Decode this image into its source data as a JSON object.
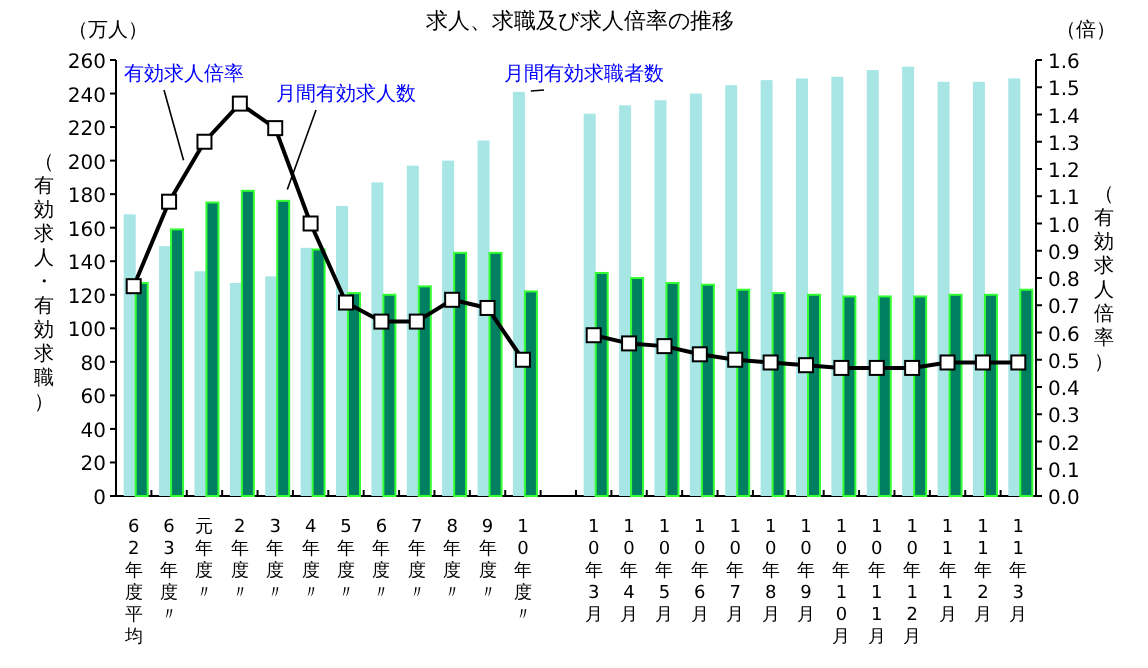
{
  "chart_data": {
    "type": "bar",
    "title": "求人、求職及び求人倍率の推移",
    "ylabel": "（有効求人・有効求職）",
    "y2label": "（有効求人倍率）",
    "annotations": [
      "（万人）",
      "（倍）"
    ],
    "categories": [
      "62年度平均",
      "63年度〃",
      "元年度〃",
      "2年度〃",
      "3年度〃",
      "4年度〃",
      "5年度〃",
      "6年度〃",
      "7年度〃",
      "8年度〃",
      "9年度〃",
      "10年度〃",
      null,
      "10年3月",
      "10年4月",
      "10年5月",
      "10年6月",
      "10年7月",
      "10年8月",
      "10年9月",
      "10年10月",
      "10年11月",
      "10年12月",
      "11年1月",
      "11年2月",
      "11年3月"
    ],
    "series": [
      {
        "name": "月間有効求職者数",
        "color": "#a8e6e6",
        "values": [
          168,
          149,
          134,
          127,
          131,
          148,
          173,
          187,
          197,
          200,
          212,
          241,
          null,
          228,
          233,
          236,
          240,
          245,
          248,
          249,
          250,
          254,
          256,
          247,
          247,
          249
        ]
      },
      {
        "name": "月間有効求人数",
        "color": "#008060",
        "values": [
          127,
          159,
          175,
          182,
          176,
          147,
          121,
          120,
          125,
          145,
          145,
          122,
          null,
          133,
          130,
          127,
          126,
          123,
          121,
          120,
          119,
          119,
          119,
          120,
          120,
          123
        ]
      },
      {
        "name": "有効求人倍率",
        "type": "line",
        "axis": "y2",
        "color": "#000000",
        "values": [
          0.77,
          1.08,
          1.3,
          1.44,
          1.35,
          1.0,
          0.71,
          0.64,
          0.64,
          0.72,
          0.69,
          0.5,
          null,
          0.59,
          0.56,
          0.55,
          0.52,
          0.5,
          0.49,
          0.48,
          0.47,
          0.47,
          0.47,
          0.49,
          0.49,
          0.49
        ]
      }
    ],
    "ylim": [
      0,
      260
    ],
    "yticks": [
      0,
      20,
      40,
      60,
      80,
      100,
      120,
      140,
      160,
      180,
      200,
      220,
      240,
      260
    ],
    "y2lim": [
      0,
      1.6
    ],
    "y2ticks": [
      {
        "value": 0,
        "label": "0.0"
      },
      0.1,
      0.2,
      0.3,
      0.4,
      0.5,
      0.6,
      0.7,
      0.8,
      0.9,
      {
        "value": 1,
        "label": "1.0"
      },
      1.1,
      1.2,
      1.3,
      1.4,
      1.5,
      1.6
    ],
    "marker": "square",
    "line_style": "solid",
    "grid": false,
    "legend": false
  }
}
